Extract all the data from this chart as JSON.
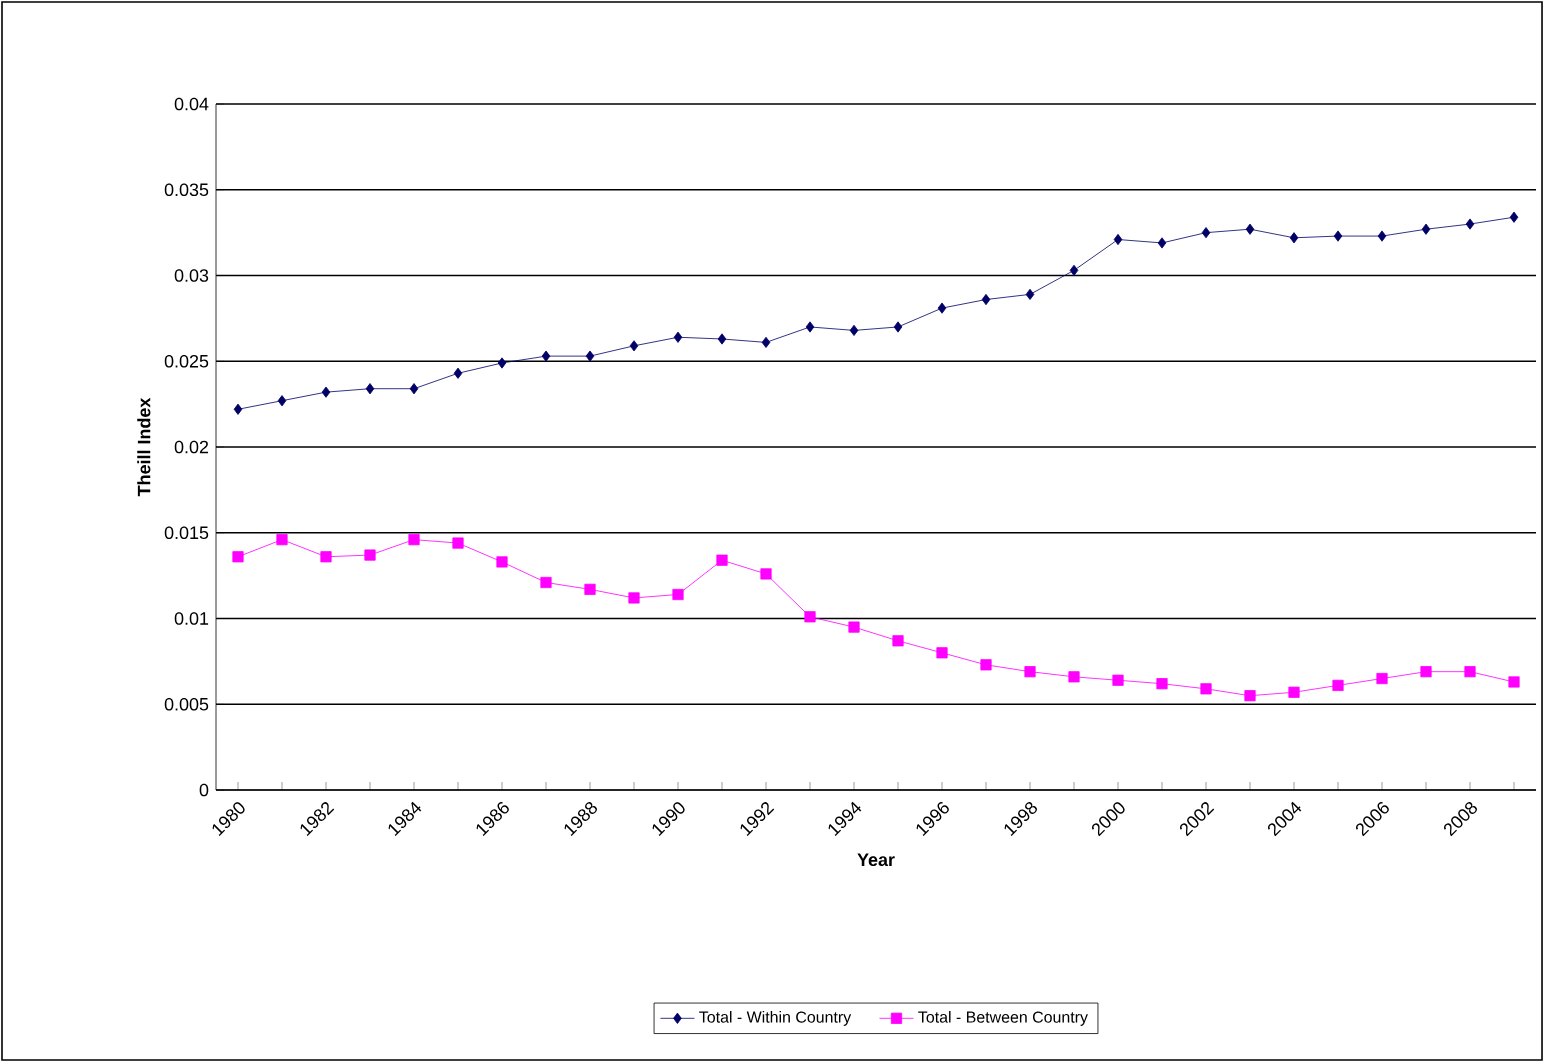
{
  "chart_data": {
    "type": "line",
    "xlabel": "Year",
    "ylabel": "Theill Index",
    "categories": [
      "1980",
      null,
      "1982",
      null,
      "1984",
      null,
      "1986",
      null,
      "1988",
      null,
      "1990",
      null,
      "1992",
      null,
      "1994",
      null,
      "1996",
      null,
      "1998",
      null,
      "2000",
      null,
      "2002",
      null,
      "2004",
      null,
      "2006",
      null,
      "2008",
      null
    ],
    "series": [
      {
        "name": "Total - Within Country",
        "color": "#000066",
        "marker": "diamond",
        "values": [
          0.0222,
          0.0227,
          0.0232,
          0.0234,
          0.0234,
          0.0243,
          0.0249,
          0.0253,
          0.0253,
          0.0259,
          0.0264,
          0.0263,
          0.0261,
          0.027,
          0.0268,
          0.027,
          0.0281,
          0.0286,
          0.0289,
          0.0303,
          0.0321,
          0.0319,
          0.0325,
          0.0327,
          0.0322,
          0.0323,
          0.0323,
          0.0327,
          0.033,
          0.0334
        ]
      },
      {
        "name": "Total - Between Country",
        "color": "#ff00ff",
        "marker": "square",
        "values": [
          0.0136,
          0.0146,
          0.0136,
          0.0137,
          0.0146,
          0.0144,
          0.0133,
          0.0121,
          0.0117,
          0.0112,
          0.0114,
          0.0134,
          0.0126,
          0.0101,
          0.0095,
          0.0087,
          0.008,
          0.0073,
          0.0069,
          0.0066,
          0.0064,
          0.0062,
          0.0059,
          0.0055,
          0.0057,
          0.0061,
          0.0065,
          0.0069,
          0.0069,
          0.0063
        ]
      }
    ],
    "ylim": [
      0,
      0.04
    ],
    "yticks": [
      0,
      0.005,
      0.01,
      0.015,
      0.02,
      0.025,
      0.03,
      0.035,
      0.04
    ],
    "grid": "y",
    "legend": "bottom",
    "line_style": "solid"
  }
}
